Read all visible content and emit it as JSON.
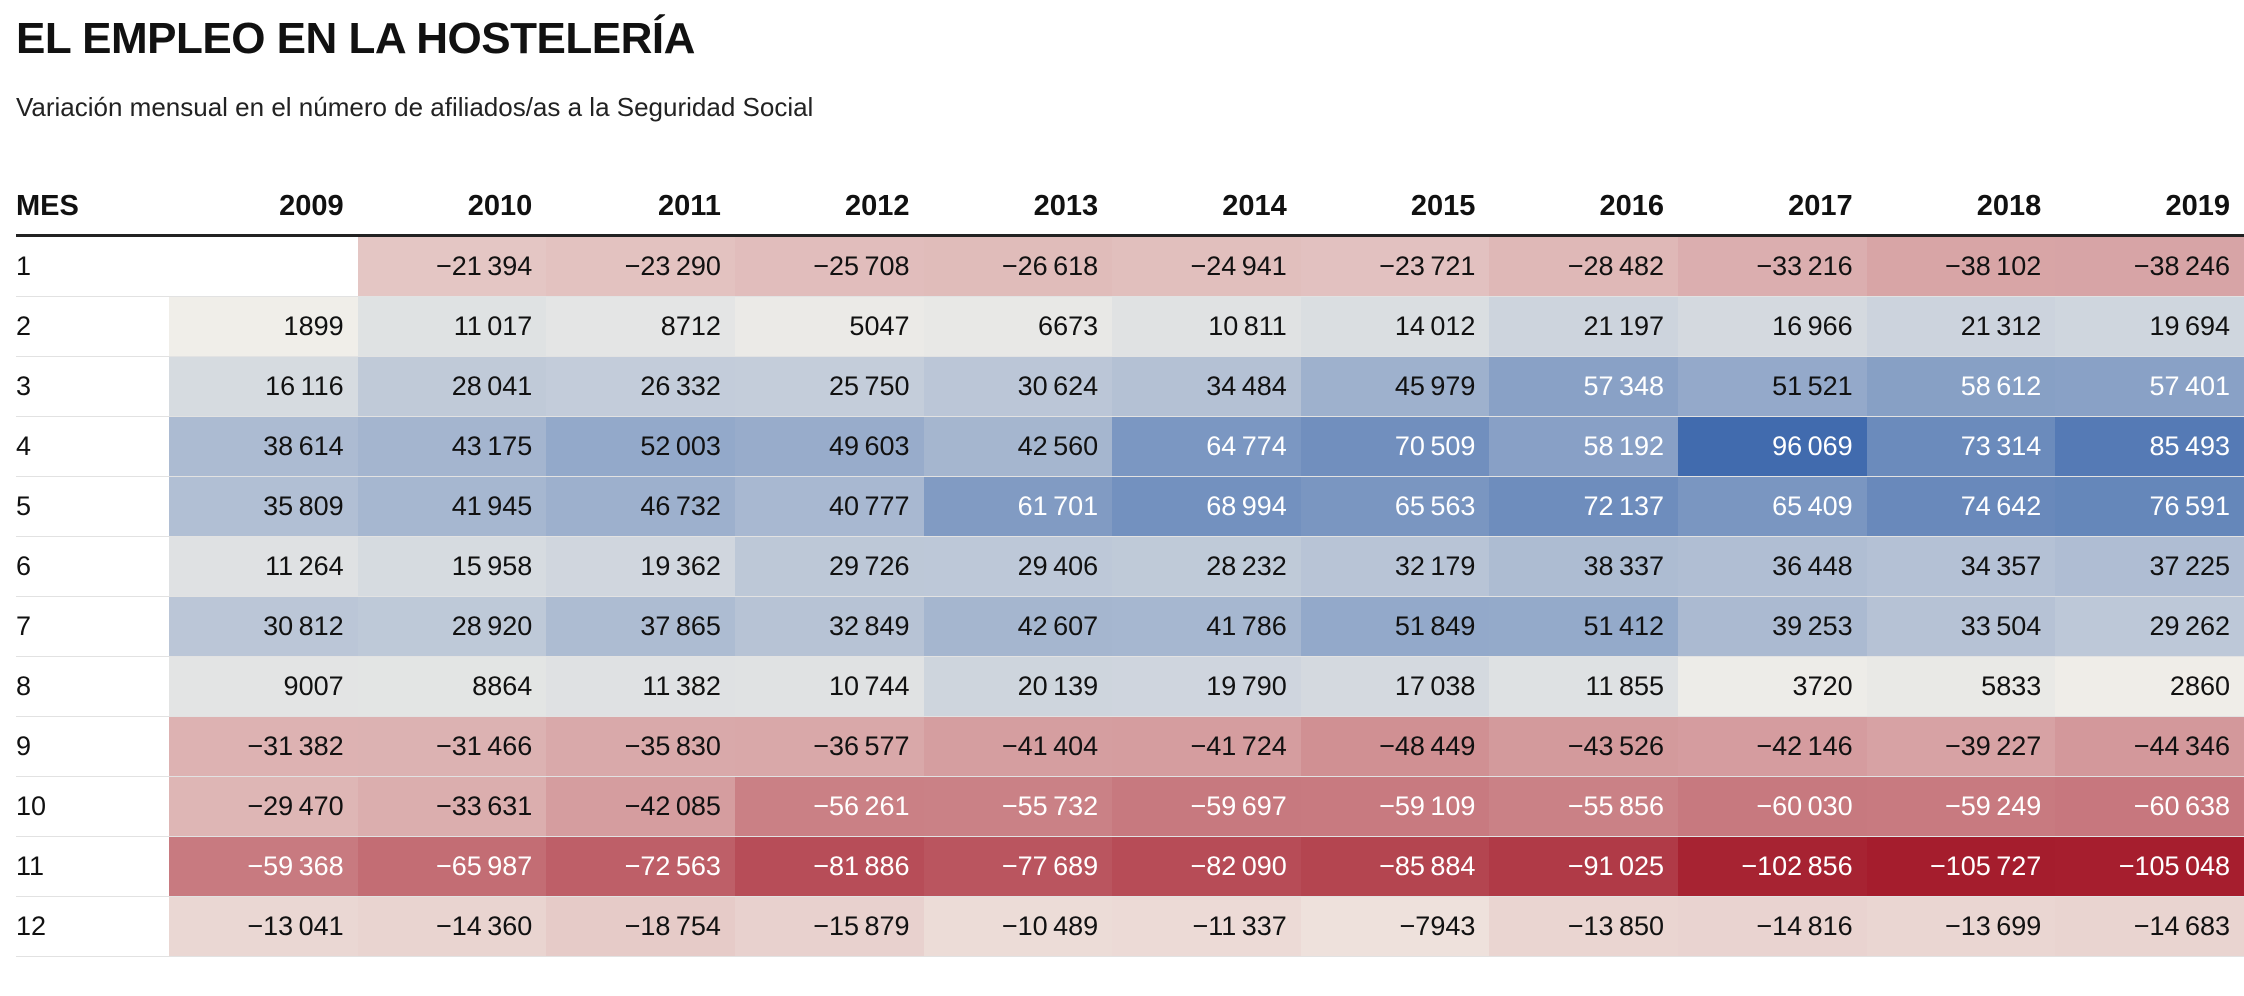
{
  "title": "EL EMPLEO EN LA HOSTELERÍA",
  "subtitle": "Variación mensual en el número de afiliados/as a la Seguridad Social",
  "chart_data": {
    "type": "heatmap",
    "row_header": "MES",
    "columns": [
      "2009",
      "2010",
      "2011",
      "2012",
      "2013",
      "2014",
      "2015",
      "2016",
      "2017",
      "2018",
      "2019"
    ],
    "rows": [
      "1",
      "2",
      "3",
      "4",
      "5",
      "6",
      "7",
      "8",
      "9",
      "10",
      "11",
      "12"
    ],
    "values": [
      [
        null,
        -21394,
        -23290,
        -25708,
        -26618,
        -24941,
        -23721,
        -28482,
        -33216,
        -38102,
        -38246
      ],
      [
        1899,
        11017,
        8712,
        5047,
        6673,
        10811,
        14012,
        21197,
        16966,
        21312,
        19694
      ],
      [
        16116,
        28041,
        26332,
        25750,
        30624,
        34484,
        45979,
        57348,
        51521,
        58612,
        57401
      ],
      [
        38614,
        43175,
        52003,
        49603,
        42560,
        64774,
        70509,
        58192,
        96069,
        73314,
        85493
      ],
      [
        35809,
        41945,
        46732,
        40777,
        61701,
        68994,
        65563,
        72137,
        65409,
        74642,
        76591
      ],
      [
        11264,
        15958,
        19362,
        29726,
        29406,
        28232,
        32179,
        38337,
        36448,
        34357,
        37225
      ],
      [
        30812,
        28920,
        37865,
        32849,
        42607,
        41786,
        51849,
        51412,
        39253,
        33504,
        29262
      ],
      [
        9007,
        8864,
        11382,
        10744,
        20139,
        19790,
        17038,
        11855,
        3720,
        5833,
        2860
      ],
      [
        -31382,
        -31466,
        -35830,
        -36577,
        -41404,
        -41724,
        -48449,
        -43526,
        -42146,
        -39227,
        -44346
      ],
      [
        -29470,
        -33631,
        -42085,
        -56261,
        -55732,
        -59697,
        -59109,
        -55856,
        -60030,
        -59249,
        -60638
      ],
      [
        -59368,
        -65987,
        -72563,
        -81886,
        -77689,
        -82090,
        -85884,
        -91025,
        -102856,
        -105727,
        -105048
      ],
      [
        -13041,
        -14360,
        -18754,
        -15879,
        -10489,
        -11337,
        -7943,
        -13850,
        -14816,
        -13699,
        -14683
      ]
    ],
    "color_scale": {
      "diverging": true,
      "negative_color": "#a51d2d",
      "neutral_color": "#f4f1ea",
      "positive_color": "#2f5ea8",
      "min": -105727,
      "max": 96069
    }
  }
}
